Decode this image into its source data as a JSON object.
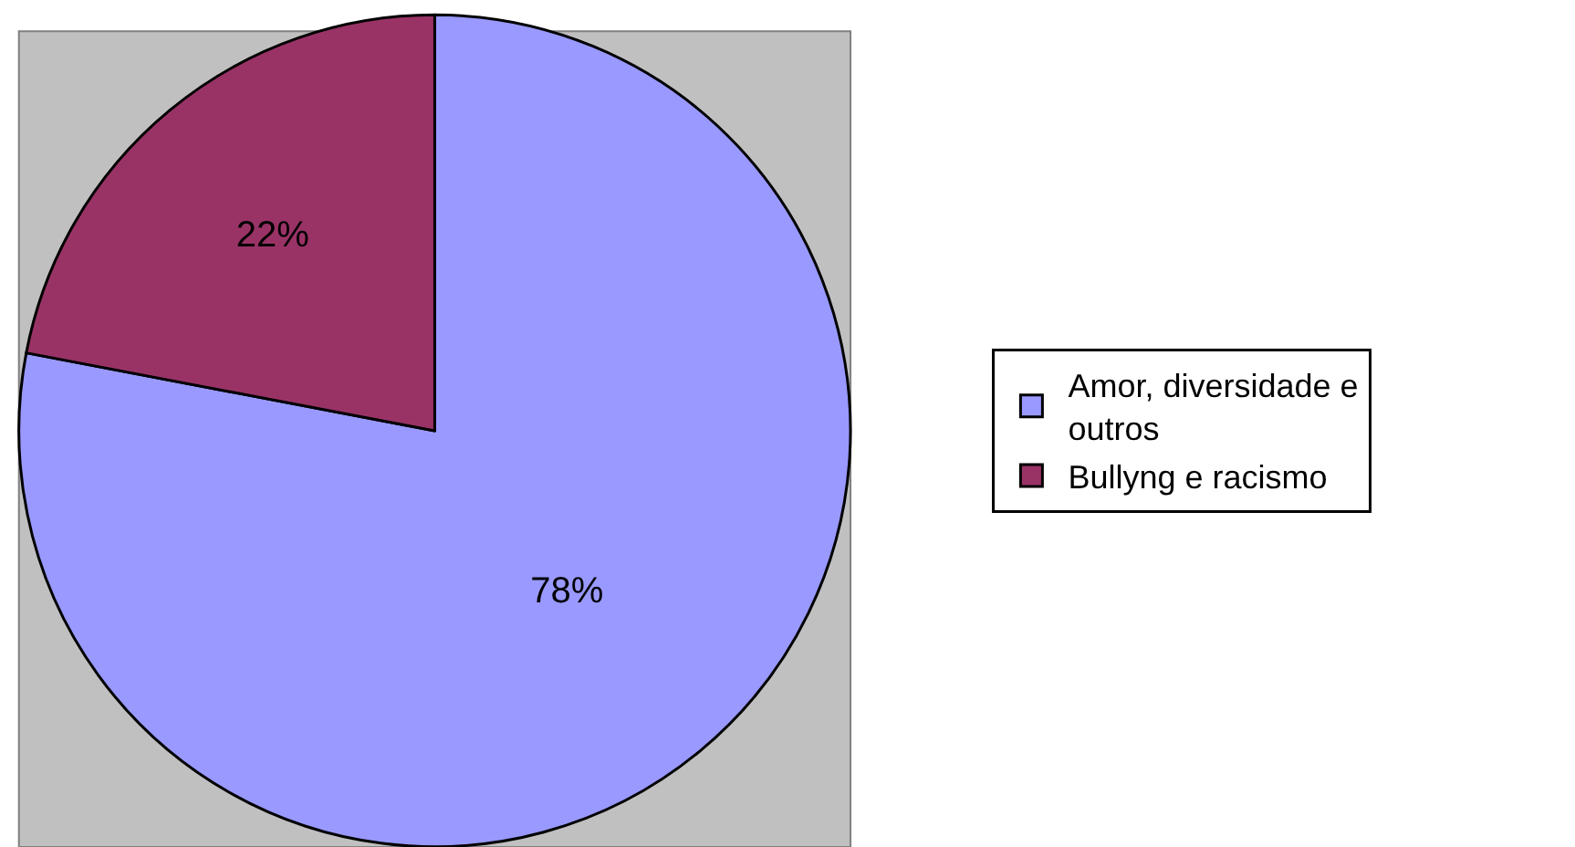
{
  "chart_data": {
    "type": "pie",
    "categories": [
      "Amor, diversidade e outros",
      "Bullyng e racismo"
    ],
    "values": [
      78,
      22
    ],
    "colors": [
      "#9999ff",
      "#993366"
    ],
    "value_labels": [
      "78%",
      "22%"
    ],
    "legend": "right"
  }
}
